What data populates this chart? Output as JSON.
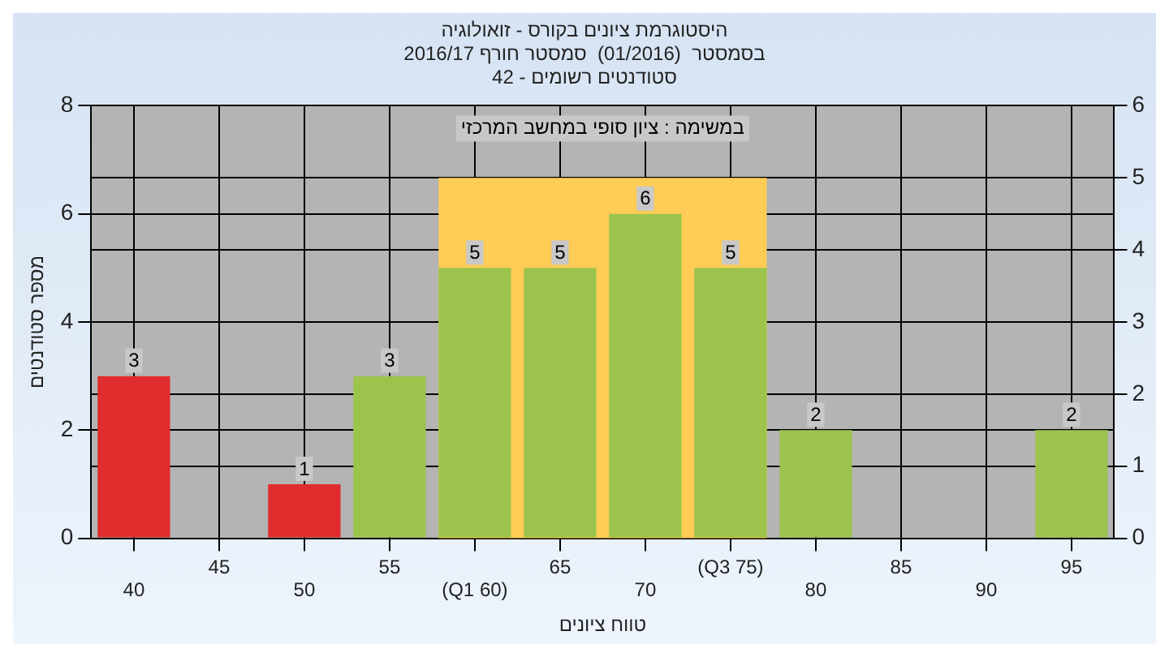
{
  "chart_data": {
    "type": "bar",
    "title": "היסטוגרמת ציונים בקורס - זואולוגיה",
    "subtitle": "בסמסטר  (01/2016)  סמסטר חורף 2016/17\nסטודנטים רשומים - 42",
    "xlabel": "טווח ציונים",
    "ylabel": "מספר סטודנטים",
    "categories": [
      "40",
      "45",
      "50",
      "55",
      "(Q1 60)",
      "65",
      "70",
      "(Q3 75)",
      "80",
      "85",
      "90",
      "95"
    ],
    "values": [
      3,
      null,
      1,
      3,
      5,
      5,
      6,
      5,
      2,
      null,
      null,
      2
    ],
    "colors": [
      "#e02c2c",
      null,
      "#e02c2c",
      "#9cc44c",
      "#9cc44c",
      "#9cc44c",
      "#9cc44c",
      "#9cc44c",
      "#9cc44c",
      null,
      null,
      "#9cc44c"
    ],
    "ylim": [
      0,
      8
    ],
    "yticks": [
      0,
      2,
      4,
      6,
      8
    ],
    "y2lim": [
      0,
      6
    ],
    "y2ticks": [
      0,
      1,
      2,
      3,
      4,
      5,
      6
    ],
    "bands": [
      {
        "axis": "x",
        "from": "(Q1 60)",
        "to": "(Q3 75)",
        "color": "#ffcc55"
      }
    ],
    "annotations": [
      "במשימה : ציון סופי במחשב המרכזי"
    ],
    "data_labels": true,
    "grid": true,
    "legend": false
  }
}
